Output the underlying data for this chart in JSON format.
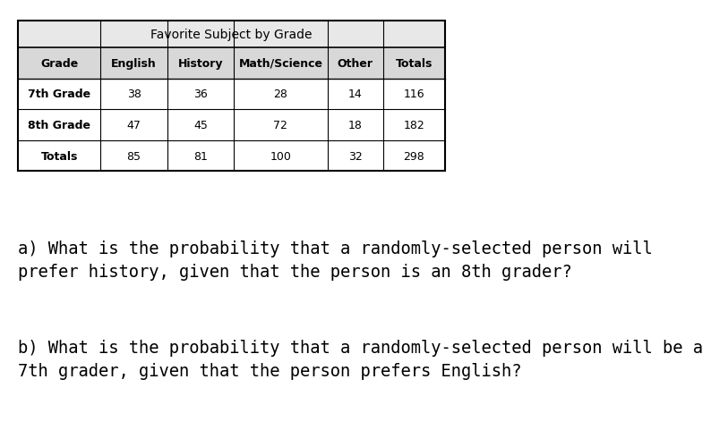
{
  "table_title": "Favorite Subject by Grade",
  "col_headers": [
    "Grade",
    "English",
    "History",
    "Math/Science",
    "Other",
    "Totals"
  ],
  "rows": [
    [
      "7th Grade",
      "38",
      "36",
      "28",
      "14",
      "116"
    ],
    [
      "8th Grade",
      "47",
      "45",
      "72",
      "18",
      "182"
    ],
    [
      "Totals",
      "85",
      "81",
      "100",
      "32",
      "298"
    ]
  ],
  "question_a": "a) What is the probability that a randomly-selected person will\nprefer history, given that the person is an 8th grader?",
  "question_b": "b) What is the probability that a randomly-selected person will be a\n7th grader, given that the person prefers English?",
  "bg_color": "#ffffff",
  "table_border_color": "#000000",
  "header_bg": "#d3d3d3",
  "cell_bg": "#ffffff",
  "title_fontsize": 10,
  "header_fontsize": 9,
  "cell_fontsize": 9,
  "question_fontsize": 13.5
}
